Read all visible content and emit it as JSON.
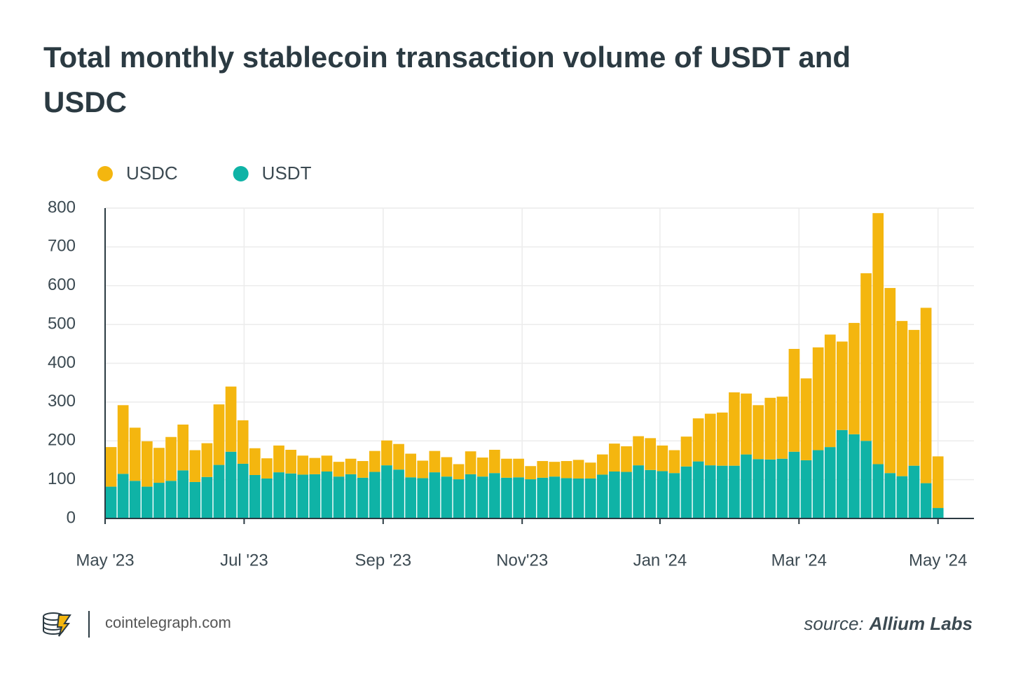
{
  "chart_data": {
    "type": "bar",
    "stacked": true,
    "title": "Total monthly stablecoin transaction volume of USDT and USDC",
    "categories": [
      null,
      null,
      null,
      null,
      null,
      null,
      null,
      null,
      null,
      null,
      null,
      null,
      null,
      null,
      null,
      null,
      null,
      null,
      null,
      null,
      null,
      null,
      null,
      null,
      null,
      null,
      null,
      null,
      null,
      null,
      null,
      null,
      null,
      null,
      null,
      null,
      null,
      null,
      null,
      null,
      null,
      null,
      null,
      null,
      null,
      null,
      null,
      null,
      null,
      null,
      null,
      null,
      null,
      null,
      null,
      null,
      null,
      null,
      null,
      null,
      null,
      null,
      null,
      null,
      null,
      null,
      null,
      null,
      null,
      null
    ],
    "series": [
      {
        "name": "USDC",
        "color": "#f4b60f",
        "values": [
          102,
          177,
          137,
          117,
          90,
          113,
          118,
          82,
          87,
          156,
          168,
          112,
          69,
          52,
          69,
          61,
          49,
          42,
          41,
          38,
          40,
          43,
          54,
          64,
          66,
          61,
          45,
          55,
          50,
          39,
          59,
          49,
          60,
          49,
          48,
          34,
          43,
          38,
          44,
          48,
          41,
          52,
          72,
          66,
          75,
          82,
          66,
          59,
          77,
          111,
          133,
          137,
          189,
          157,
          139,
          159,
          160,
          265,
          211,
          265,
          290,
          228,
          287,
          432,
          647,
          477,
          400,
          350,
          452,
          133
        ]
      },
      {
        "name": "USDT",
        "color": "#0fb3a6",
        "values": [
          82,
          115,
          97,
          82,
          92,
          97,
          124,
          94,
          107,
          138,
          172,
          141,
          112,
          103,
          119,
          116,
          113,
          114,
          121,
          108,
          114,
          105,
          120,
          137,
          126,
          106,
          104,
          119,
          108,
          101,
          114,
          108,
          117,
          105,
          106,
          101,
          105,
          108,
          104,
          103,
          103,
          113,
          121,
          120,
          137,
          125,
          122,
          117,
          134,
          147,
          137,
          136,
          136,
          165,
          153,
          152,
          154,
          172,
          150,
          176,
          184,
          228,
          217,
          200,
          140,
          117,
          109,
          136,
          91,
          27
        ]
      }
    ],
    "ylim": [
      0,
      800
    ],
    "yticks": [
      0,
      100,
      200,
      300,
      400,
      500,
      600,
      700,
      800
    ],
    "xlim": [
      -0.5,
      72
    ],
    "xticks": [
      {
        "value": -0.5,
        "label": "May '23"
      },
      {
        "value": 11.1,
        "label": "Jul '23"
      },
      {
        "value": 22.7,
        "label": "Sep '23"
      },
      {
        "value": 34.3,
        "label": "Nov'23"
      },
      {
        "value": 45.8,
        "label": "Jan '24"
      },
      {
        "value": 57.4,
        "label": "Mar '24"
      },
      {
        "value": 69,
        "label": "May '24"
      }
    ],
    "grid": true,
    "legend": "top-left"
  },
  "footer": {
    "site": "cointelegraph.com",
    "source_label": "source:",
    "source": "Allium Labs"
  }
}
